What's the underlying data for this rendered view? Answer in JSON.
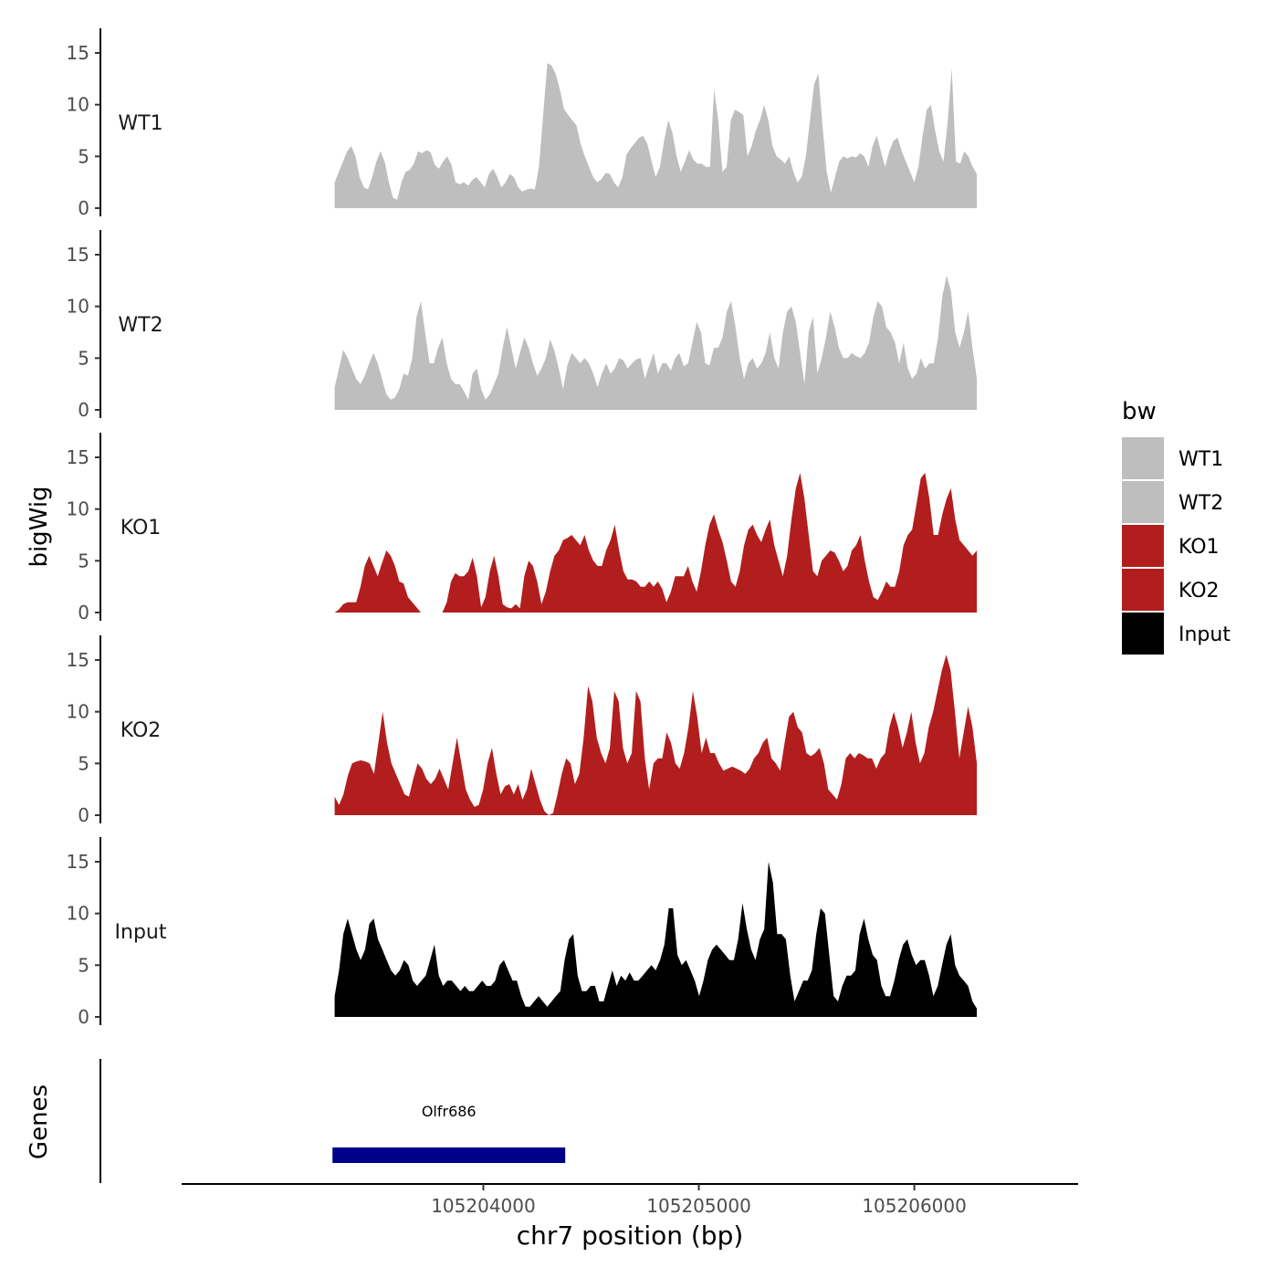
{
  "chart_data": {
    "type": "area",
    "ylabel": "bigWig",
    "xlabel": "chr7 position (bp)",
    "xlim": [
      105202600,
      105206760
    ],
    "ylim": [
      0,
      17
    ],
    "y_ticks": [
      0,
      5,
      10,
      15
    ],
    "x_ticks": [
      105204000,
      105205000,
      105206000
    ],
    "x_tick_labels": [
      "105204000",
      "105205000",
      "105206000"
    ],
    "x_range_data": [
      105203310,
      105206290
    ],
    "legend": {
      "title": "bw",
      "position": "right",
      "items": [
        {
          "label": "WT1",
          "color": "#bebebe"
        },
        {
          "label": "WT2",
          "color": "#bebebe"
        },
        {
          "label": "KO1",
          "color": "#b21e1e"
        },
        {
          "label": "KO2",
          "color": "#b21e1e"
        },
        {
          "label": "Input",
          "color": "#000000"
        }
      ]
    },
    "series": [
      {
        "name": "WT1",
        "color": "#bebebe",
        "values": [
          2.5,
          3.5,
          4.5,
          5.5,
          6,
          5,
          3,
          2,
          1.8,
          3,
          4.5,
          5.5,
          4.5,
          2.5,
          1,
          0.8,
          2.5,
          3.5,
          3.7,
          4.3,
          5.5,
          5.3,
          5.6,
          5.4,
          4.2,
          3.8,
          4.5,
          5,
          4.2,
          2.5,
          2.3,
          2.5,
          2.2,
          2.7,
          3,
          2.5,
          2,
          3.3,
          3.8,
          3,
          2,
          2.5,
          3.3,
          3,
          2,
          1.6,
          1.8,
          1.9,
          1.8,
          4,
          9,
          14,
          13.8,
          13,
          11.5,
          9.6,
          9,
          8.5,
          8,
          6.2,
          5,
          4,
          3,
          2.5,
          2.8,
          3.4,
          3.3,
          2.5,
          2,
          3,
          5.2,
          5.8,
          6.3,
          6.8,
          7,
          6.2,
          4.5,
          3,
          4,
          6.5,
          8.5,
          7.3,
          5,
          3.5,
          4.5,
          5.6,
          4.7,
          4.3,
          4.3,
          4,
          4,
          11.5,
          8.5,
          3.5,
          4,
          8.5,
          9.5,
          9.3,
          9,
          5,
          6,
          7.5,
          8.5,
          10,
          8.5,
          6,
          5,
          4.7,
          4.3,
          5,
          3.5,
          2.5,
          3,
          5,
          8.5,
          12,
          13,
          8,
          3.5,
          1.5,
          3,
          4.5,
          5,
          4.8,
          5,
          4.9,
          5.3,
          5,
          4,
          6,
          7,
          5.5,
          4,
          5.5,
          6.5,
          6.8,
          5.5,
          4.5,
          3.5,
          2.5,
          4,
          7,
          9.5,
          10,
          7.5,
          5.5,
          4.5,
          8.3,
          13.5,
          4.5,
          4.3,
          5.5,
          5,
          4,
          3.3
        ]
      },
      {
        "name": "WT2",
        "color": "#bebebe",
        "values": [
          2.2,
          4,
          5.8,
          5,
          4,
          3,
          2.5,
          3.3,
          4.5,
          5.5,
          4.5,
          3,
          1.5,
          1,
          1.2,
          2,
          3.5,
          3.3,
          5,
          9,
          10.5,
          7.5,
          4.5,
          4.5,
          6,
          7,
          4.5,
          3,
          2.5,
          2.5,
          1.8,
          1,
          3.5,
          4,
          2,
          1,
          1.5,
          2.5,
          3.5,
          6,
          8,
          6,
          4,
          5.5,
          7,
          6,
          4.5,
          3.3,
          4,
          5,
          6.8,
          5.7,
          4,
          2,
          4.3,
          5.5,
          5,
          4.5,
          5,
          4.5,
          3.5,
          2.2,
          3.5,
          4.5,
          3.5,
          4,
          5,
          4.8,
          4,
          4.5,
          4.9,
          5,
          3,
          4.3,
          5.5,
          3.5,
          4.5,
          4.5,
          3.8,
          5,
          5.5,
          4.2,
          4.5,
          6.5,
          8.5,
          7.5,
          4.5,
          4.3,
          6,
          6,
          7,
          9.5,
          10.5,
          8,
          5,
          3,
          4.5,
          5,
          4,
          4.5,
          5.5,
          7.5,
          5,
          4,
          7.5,
          9.5,
          10,
          8.5,
          5.5,
          2.5,
          7.5,
          9,
          3.5,
          5,
          7,
          9.5,
          8,
          6,
          5,
          5,
          5.5,
          5.2,
          5,
          5.5,
          6.5,
          9,
          10.5,
          10,
          8,
          7.5,
          6.5,
          4.5,
          6.5,
          4,
          3,
          3.5,
          5,
          4,
          4.5,
          4.5,
          7,
          11,
          13,
          11.5,
          7.5,
          6,
          7.5,
          9.5,
          6,
          3
        ]
      },
      {
        "name": "KO1",
        "color": "#b21e1e",
        "values": [
          0,
          0.3,
          0.8,
          1,
          1,
          1,
          2.5,
          4.5,
          5.5,
          4.5,
          3.5,
          4.8,
          6,
          5.5,
          4.5,
          3,
          2.8,
          1.5,
          1,
          0.5,
          0,
          0,
          0,
          0,
          0,
          0,
          1,
          3,
          3.8,
          3.5,
          3.5,
          4,
          5.3,
          3.5,
          0.5,
          1.5,
          4,
          5.5,
          3.5,
          0.8,
          0.5,
          0.4,
          0.8,
          0.4,
          3.5,
          5,
          4.5,
          3,
          0.8,
          2,
          4,
          5.5,
          6,
          7,
          7.2,
          7.5,
          7,
          6.5,
          7.5,
          6,
          5,
          4.5,
          4.5,
          6,
          7,
          8.5,
          6,
          4,
          3.2,
          3.2,
          3,
          2.5,
          2.5,
          3,
          2.5,
          3,
          2.3,
          1,
          2,
          3.5,
          3.5,
          3.5,
          4.5,
          3,
          2,
          4,
          6.5,
          8.5,
          9.5,
          8,
          6.8,
          5,
          3,
          2.5,
          4,
          6.5,
          8,
          8.5,
          7.5,
          6.8,
          8,
          9,
          6.5,
          5,
          3.5,
          5.5,
          9,
          12,
          13.5,
          11,
          7.5,
          4,
          3.5,
          5,
          5.5,
          6,
          5.8,
          5,
          4,
          4.5,
          6,
          6.5,
          7.5,
          5,
          3,
          1.5,
          1.2,
          2,
          3,
          2.5,
          2.5,
          4,
          6.5,
          7.5,
          8,
          10.5,
          13,
          13.5,
          11,
          7.5,
          7.5,
          9.5,
          11,
          12,
          9,
          7,
          6.5,
          6,
          5.5,
          6
        ]
      },
      {
        "name": "KO2",
        "color": "#b21e1e",
        "values": [
          1.8,
          1,
          2,
          3.8,
          5,
          5.2,
          5.3,
          5.2,
          5,
          4,
          7,
          10,
          7,
          5,
          4,
          3,
          2,
          1.8,
          3.5,
          5,
          4.5,
          3.5,
          3,
          3.5,
          4.5,
          3.5,
          2.5,
          5,
          7.5,
          5,
          2.5,
          1.5,
          0.8,
          1,
          2.5,
          5,
          6.5,
          4,
          2,
          2.8,
          3,
          2,
          3,
          1.5,
          2.5,
          4.5,
          3,
          1.5,
          0.4,
          0,
          0.2,
          2,
          4,
          5.5,
          5,
          3,
          4,
          7.5,
          12.5,
          11,
          7.5,
          6,
          5,
          6.5,
          12,
          11,
          6.5,
          5,
          6,
          12,
          11,
          5.5,
          2.5,
          5,
          5.5,
          5.5,
          8,
          7,
          5,
          4.5,
          6,
          8.5,
          12,
          9.5,
          6,
          7.5,
          6,
          6,
          5,
          4.3,
          4.5,
          4.7,
          4.5,
          4.3,
          4,
          4.5,
          5.5,
          6,
          7,
          7.5,
          5.5,
          5,
          4.3,
          7,
          9.5,
          10,
          8.5,
          8,
          6,
          5.7,
          6,
          6.5,
          5,
          2.5,
          2,
          1.5,
          3,
          5.5,
          6,
          5.5,
          6,
          5.8,
          5.5,
          5.5,
          4.5,
          5.5,
          6,
          8.5,
          10,
          8.5,
          6.5,
          8,
          10,
          7,
          5,
          6,
          8.5,
          10,
          12,
          14,
          15.5,
          14,
          10,
          5.5,
          8,
          10.5,
          8.5,
          5
        ]
      },
      {
        "name": "Input",
        "color": "#000000",
        "values": [
          2,
          4.5,
          8,
          9.5,
          8,
          6.5,
          5.5,
          6.5,
          9,
          9.5,
          7.5,
          6.5,
          5.5,
          4.5,
          4,
          4.5,
          5.5,
          5,
          3.5,
          3,
          3.5,
          4,
          5.5,
          7,
          4,
          3,
          3.5,
          3.5,
          3,
          2.5,
          3,
          2.5,
          2.5,
          3,
          3.5,
          3,
          3,
          3.5,
          5,
          5.5,
          4.5,
          3.5,
          3.5,
          2,
          1,
          1,
          1.5,
          2,
          1.5,
          1,
          1.5,
          2,
          2.5,
          5.5,
          7.5,
          8,
          4,
          2.5,
          2.5,
          3,
          3,
          1.5,
          1.5,
          3,
          4.5,
          3,
          4,
          3.5,
          4.3,
          3.5,
          3.5,
          4,
          4.5,
          5,
          4.5,
          5.5,
          7,
          10.5,
          10.5,
          6,
          5,
          5.5,
          4.5,
          3.5,
          2,
          3.5,
          5.5,
          6.5,
          7,
          6.5,
          6,
          5.5,
          5.5,
          7.5,
          11,
          8.5,
          6.5,
          5.5,
          7.5,
          8.5,
          15,
          13,
          8,
          8,
          7.5,
          4,
          1.5,
          2.5,
          3.5,
          3.5,
          4.5,
          8,
          10.5,
          10,
          6,
          2,
          1.5,
          3,
          4,
          4,
          4.5,
          8,
          9.5,
          7.5,
          6,
          5.5,
          3,
          2,
          2,
          3.5,
          5.5,
          7,
          7.5,
          6,
          5,
          5.5,
          5.5,
          4,
          2,
          3,
          5,
          7,
          8,
          5,
          4,
          3.5,
          3,
          1.5,
          0.8
        ]
      }
    ],
    "genes_track": {
      "label": "Genes",
      "genes": [
        {
          "name": "Olfr686",
          "start": 105203300,
          "end": 105204380,
          "color": "#00008b"
        }
      ]
    }
  }
}
